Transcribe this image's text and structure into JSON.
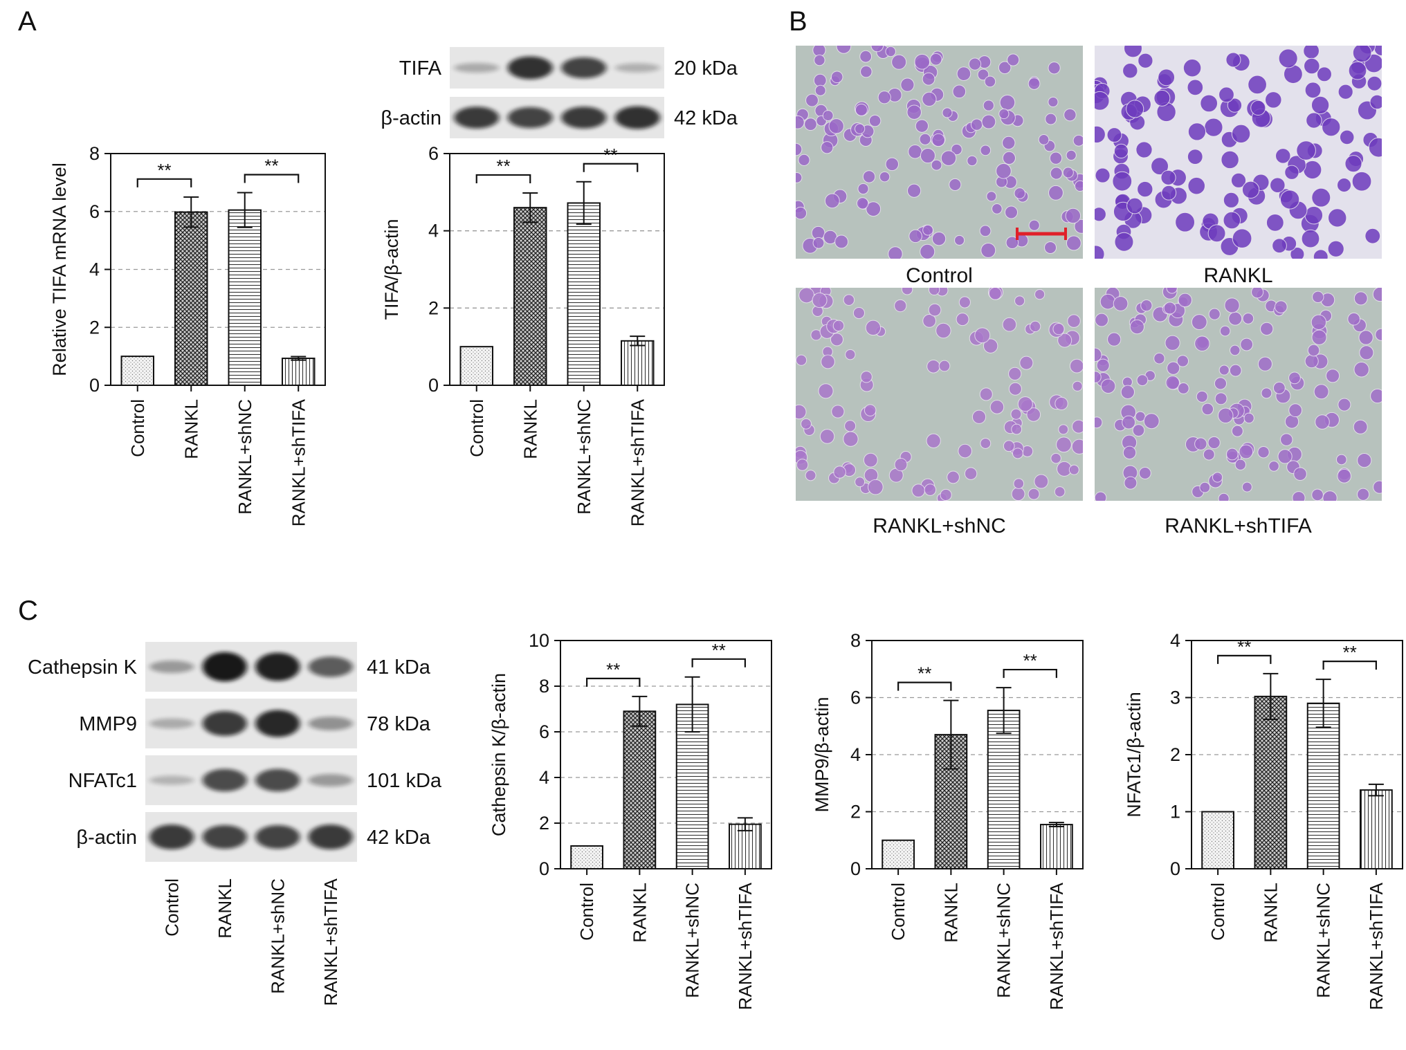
{
  "panel_labels": {
    "a": "A",
    "b": "B",
    "c": "C"
  },
  "colors": {
    "bar_edge": "#111111",
    "grid": "#999999",
    "scale_bar": "#e0202a",
    "stain": "#7a4fb0",
    "background_cells": "#b7c2bd"
  },
  "chart_data": [
    {
      "id": "a-mrna",
      "type": "bar",
      "ylabel": "Relative TIFA mRNA level",
      "ylim": [
        0,
        8
      ],
      "yticks": [
        "0",
        "2",
        "4",
        "6",
        "8"
      ],
      "grid": "dashed-horizontal",
      "categories": [
        "Control",
        "RANKL",
        "RANKL+shNC",
        "RANKL+shTIFA"
      ],
      "values": [
        1.0,
        5.98,
        6.05,
        0.93
      ],
      "errors": [
        0,
        0.52,
        0.6,
        0.06
      ],
      "patterns": [
        "dots",
        "crosshatch",
        "hlines",
        "vlines"
      ],
      "significance": [
        {
          "from": 0,
          "to": 1,
          "label": "**"
        },
        {
          "from": 2,
          "to": 3,
          "label": "**"
        }
      ]
    },
    {
      "id": "a-protein",
      "type": "bar",
      "ylabel": "TIFA/β-actin",
      "ylim": [
        0,
        6
      ],
      "yticks": [
        "0",
        "2",
        "4",
        "6"
      ],
      "grid": "dashed-horizontal",
      "categories": [
        "Control",
        "RANKL",
        "RANKL+shNC",
        "RANKL+shTIFA"
      ],
      "values": [
        1.0,
        4.6,
        4.72,
        1.15
      ],
      "errors": [
        0,
        0.38,
        0.55,
        0.12
      ],
      "patterns": [
        "dots",
        "crosshatch",
        "hlines",
        "vlines"
      ],
      "significance": [
        {
          "from": 0,
          "to": 1,
          "label": "**"
        },
        {
          "from": 2,
          "to": 3,
          "label": "**"
        }
      ]
    },
    {
      "id": "c-cathepsin",
      "type": "bar",
      "ylabel": "Cathepsin K/β-actin",
      "ylim": [
        0,
        10
      ],
      "yticks": [
        "0",
        "2",
        "4",
        "6",
        "8",
        "10"
      ],
      "grid": "dashed-horizontal",
      "categories": [
        "Control",
        "RANKL",
        "RANKL+shNC",
        "RANKL+shTIFA"
      ],
      "values": [
        1.0,
        6.9,
        7.2,
        1.95
      ],
      "errors": [
        0,
        0.65,
        1.2,
        0.28
      ],
      "patterns": [
        "dots",
        "crosshatch",
        "hlines",
        "vlines"
      ],
      "significance": [
        {
          "from": 0,
          "to": 1,
          "label": "**"
        },
        {
          "from": 2,
          "to": 3,
          "label": "**"
        }
      ]
    },
    {
      "id": "c-mmp9",
      "type": "bar",
      "ylabel": "MMP9/β-actin",
      "ylim": [
        0,
        8
      ],
      "yticks": [
        "0",
        "2",
        "4",
        "6",
        "8"
      ],
      "grid": "dashed-horizontal",
      "categories": [
        "Control",
        "RANKL",
        "RANKL+shNC",
        "RANKL+shTIFA"
      ],
      "values": [
        1.0,
        4.7,
        5.55,
        1.55
      ],
      "errors": [
        0,
        1.2,
        0.8,
        0.07
      ],
      "patterns": [
        "dots",
        "crosshatch",
        "hlines",
        "vlines"
      ],
      "significance": [
        {
          "from": 0,
          "to": 1,
          "label": "**"
        },
        {
          "from": 2,
          "to": 3,
          "label": "**"
        }
      ]
    },
    {
      "id": "c-nfatc1",
      "type": "bar",
      "ylabel": "NFATc1/β-actin",
      "ylim": [
        0,
        4
      ],
      "yticks": [
        "0",
        "1",
        "2",
        "3",
        "4"
      ],
      "grid": "dashed-horizontal",
      "categories": [
        "Control",
        "RANKL",
        "RANKL+shNC",
        "RANKL+shTIFA"
      ],
      "values": [
        1.0,
        3.02,
        2.9,
        1.38
      ],
      "errors": [
        0,
        0.4,
        0.42,
        0.1
      ],
      "patterns": [
        "dots",
        "crosshatch",
        "hlines",
        "vlines"
      ],
      "significance": [
        {
          "from": 0,
          "to": 1,
          "label": "**"
        },
        {
          "from": 2,
          "to": 3,
          "label": "**"
        }
      ]
    }
  ],
  "blots": [
    {
      "id": "a-blot",
      "rows": [
        {
          "protein": "TIFA",
          "size": "20 kDa",
          "intensities": [
            0.15,
            0.85,
            0.75,
            0.12
          ]
        },
        {
          "protein": "β-actin",
          "size": "42 kDa",
          "intensities": [
            0.8,
            0.75,
            0.8,
            0.85
          ]
        }
      ]
    },
    {
      "id": "c-blot",
      "rows": [
        {
          "protein": "Cathepsin K",
          "size": "41 kDa",
          "intensities": [
            0.25,
            1.0,
            0.95,
            0.6
          ]
        },
        {
          "protein": "MMP9",
          "size": "78 kDa",
          "intensities": [
            0.15,
            0.8,
            0.9,
            0.3
          ]
        },
        {
          "protein": "NFATc1",
          "size": "101 kDa",
          "intensities": [
            0.1,
            0.7,
            0.7,
            0.25
          ]
        },
        {
          "protein": "β-actin",
          "size": "42 kDa",
          "intensities": [
            0.8,
            0.75,
            0.75,
            0.8
          ]
        }
      ],
      "lanes": [
        "Control",
        "RANKL",
        "RANKL+shNC",
        "RANKL+shTIFA"
      ]
    }
  ],
  "micrographs": [
    {
      "label": "Control",
      "density": 0.55,
      "stain": 0.5,
      "scale_bar": true
    },
    {
      "label": "RANKL",
      "density": 0.5,
      "stain": 1.0,
      "scale_bar": false
    },
    {
      "label": "RANKL+shNC",
      "density": 0.45,
      "stain": 0.35,
      "scale_bar": false
    },
    {
      "label": "RANKL+shTIFA",
      "density": 0.55,
      "stain": 0.45,
      "scale_bar": false
    }
  ]
}
